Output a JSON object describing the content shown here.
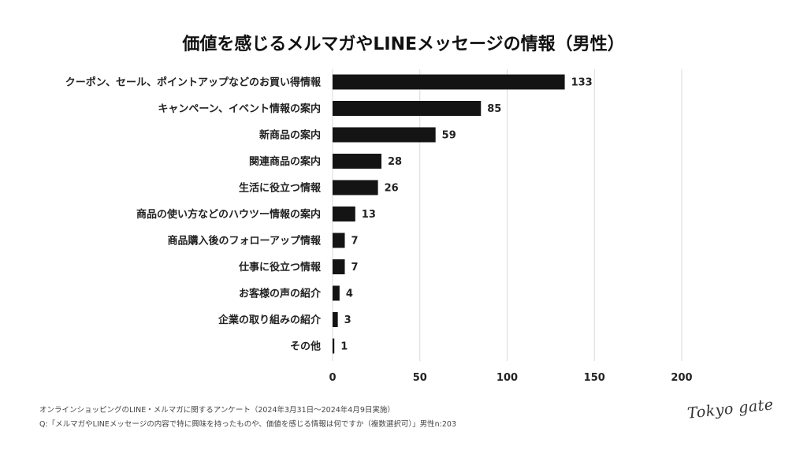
{
  "chart_data": {
    "type": "bar",
    "orientation": "horizontal",
    "title": "価値を感じるメルマガやLINEメッセージの情報（男性）",
    "categories": [
      "クーポン、セール、ポイントアップなどのお買い得情報",
      "キャンペーン、イベント情報の案内",
      "新商品の案内",
      "関連商品の案内",
      "生活に役立つ情報",
      "商品の使い方などのハウツー情報の案内",
      "商品購入後のフォローアップ情報",
      "仕事に役立つ情報",
      "お客様の声の紹介",
      "企業の取り組みの紹介",
      "その他"
    ],
    "values": [
      133,
      85,
      59,
      28,
      26,
      13,
      7,
      7,
      4,
      3,
      1
    ],
    "xlim": [
      0,
      200
    ],
    "xticks": [
      "0",
      "50",
      "100",
      "150",
      "200"
    ],
    "grid": true,
    "bar_color": "#141414",
    "grid_color": "#d9d9d9"
  },
  "footer": {
    "survey": "オンラインショッピングのLINE・メルマガに関するアンケート（2024年3月31日〜2024年4月9日実施）",
    "question": "Q:「メルマガやLINEメッセージの内容で特に興味を持ったものや、価値を感じる情報は何ですか（複数選択可）」男性n:203"
  },
  "logo": {
    "text": "Tokyo gate"
  }
}
